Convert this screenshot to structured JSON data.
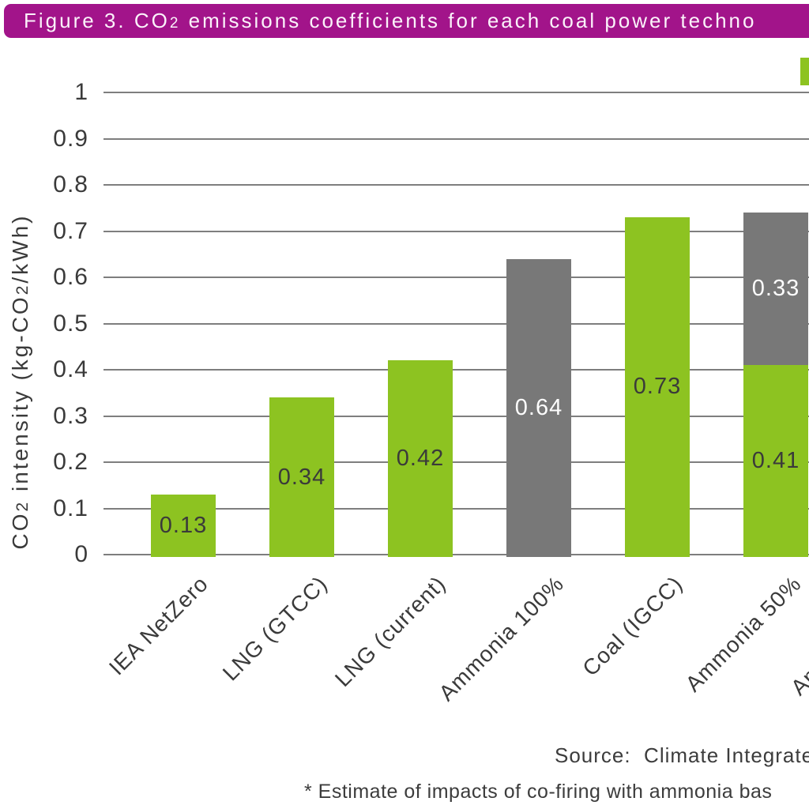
{
  "colors": {
    "header_bg": "#a2148a",
    "green": "#8dc321",
    "gray": "#787878",
    "grid": "#7e7e7e",
    "text": "#3a3a3a",
    "value_on_green": "#3a3a3a",
    "value_on_gray": "#fdfdfd"
  },
  "header": {
    "title_p1": "Figure 3. CO",
    "title_sub": "2",
    "title_p2": " emissions coefficients for each coal power techno"
  },
  "legend": {
    "partial_swatch_color_key": "green"
  },
  "chart_data": {
    "type": "bar",
    "stacked": true,
    "title": "Figure 3. CO2 emissions coefficients for each coal power techno",
    "ylabel": "CO2 intensity (kg-CO2/kWh)",
    "ylabel_parts": {
      "p1": "CO",
      "s1": "2",
      "p2": " intensity (kg-CO",
      "s2": "2",
      "p3": "/kWh)"
    },
    "ylim": [
      0,
      1
    ],
    "grid": true,
    "ytick_values": [
      1,
      0.9,
      0.8,
      0.7,
      0.6,
      0.5,
      0.4,
      0.3,
      0.2,
      0.1,
      0
    ],
    "ytick_labels": [
      "1",
      "0.9",
      "0.8",
      "0.7",
      "0.6",
      "0.5",
      "0.4",
      "0.3",
      "0.2",
      "0.1",
      "0"
    ],
    "categories": [
      "IEA NetZero",
      "LNG (GTCC)",
      "LNG (current)",
      "Ammonia 100%",
      "Coal (IGCC)",
      "Ammonia 50%",
      "Am"
    ],
    "bars": [
      {
        "category": "IEA NetZero",
        "segments": [
          {
            "value": 0.13,
            "label": "0.13",
            "color_key": "green"
          }
        ]
      },
      {
        "category": "LNG (GTCC)",
        "segments": [
          {
            "value": 0.34,
            "label": "0.34",
            "color_key": "green"
          }
        ]
      },
      {
        "category": "LNG (current)",
        "segments": [
          {
            "value": 0.42,
            "label": "0.42",
            "color_key": "green"
          }
        ]
      },
      {
        "category": "Ammonia 100%",
        "segments": [
          {
            "value": 0.64,
            "label": "0.64",
            "color_key": "gray"
          }
        ]
      },
      {
        "category": "Coal (IGCC)",
        "segments": [
          {
            "value": 0.73,
            "label": "0.73",
            "color_key": "green"
          }
        ]
      },
      {
        "category": "Ammonia 50%",
        "segments": [
          {
            "value": 0.41,
            "label": "0.41",
            "color_key": "green"
          },
          {
            "value": 0.33,
            "label": "0.33",
            "color_key": "gray"
          }
        ]
      },
      {
        "category": "Am",
        "partial": true,
        "segments": []
      }
    ]
  },
  "footer": {
    "source": "Source:  Climate Integrate",
    "footnote": "* Estimate of impacts of co-firing with ammonia bas"
  }
}
